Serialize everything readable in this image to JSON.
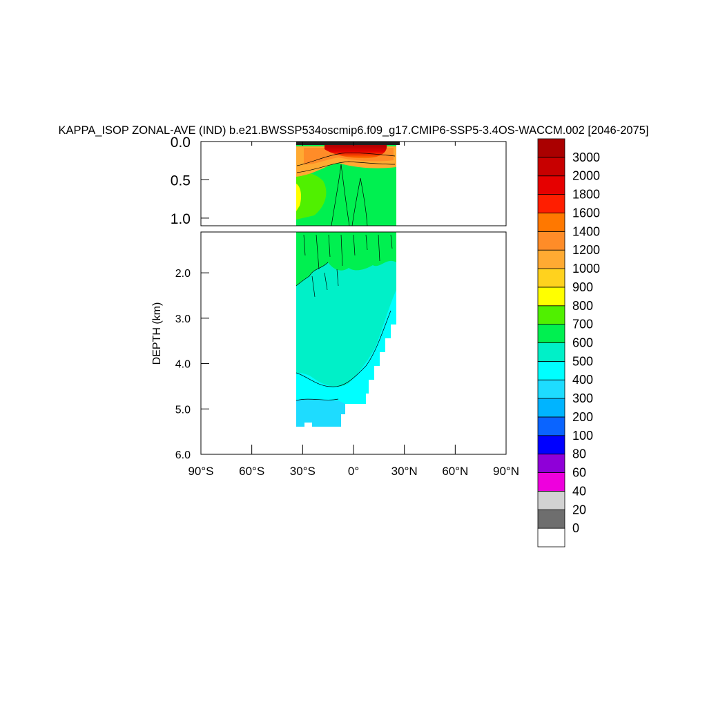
{
  "chart_data": {
    "type": "heatmap",
    "title": "KAPPA_ISOP ZONAL-AVE (IND) b.e21.BWSSP534oscmip6.f09_g17.CMIP6-SSP5-3.4OS-WACCM.002 [2046-2075]",
    "ylabel": "DEPTH (km)",
    "xlabel": "",
    "xlim": [
      -90,
      90
    ],
    "ylim_upper_panel": [
      0.0,
      1.1
    ],
    "ylim_lower_panel": [
      1.1,
      6.0
    ],
    "x_ticks": [
      {
        "value": -90,
        "label": "90°S"
      },
      {
        "value": -60,
        "label": "60°S"
      },
      {
        "value": -30,
        "label": "30°S"
      },
      {
        "value": 0,
        "label": "0°"
      },
      {
        "value": 30,
        "label": "30°N"
      },
      {
        "value": 60,
        "label": "60°N"
      },
      {
        "value": 90,
        "label": "90°N"
      }
    ],
    "y_ticks_upper": [
      {
        "value": 0.0,
        "label": "0.0"
      },
      {
        "value": 0.5,
        "label": "0.5"
      },
      {
        "value": 1.0,
        "label": "1.0"
      }
    ],
    "y_ticks_lower": [
      {
        "value": 2.0,
        "label": "2.0"
      },
      {
        "value": 3.0,
        "label": "3.0"
      },
      {
        "value": 4.0,
        "label": "4.0"
      },
      {
        "value": 5.0,
        "label": "5.0"
      },
      {
        "value": 6.0,
        "label": "6.0"
      }
    ],
    "colorbar": {
      "levels": [
        "0",
        "20",
        "40",
        "60",
        "80",
        "100",
        "200",
        "300",
        "400",
        "500",
        "600",
        "700",
        "800",
        "900",
        "1000",
        "1200",
        "1400",
        "1600",
        "1800",
        "2000",
        "3000"
      ],
      "colors": [
        "#ffffff",
        "#6e6e6e",
        "#d2d2d2",
        "#ee00dd",
        "#8f00d8",
        "#0000ff",
        "#0a64ff",
        "#00b4ff",
        "#1edcff",
        "#00ffff",
        "#00f0c8",
        "#00f050",
        "#50f000",
        "#ffff00",
        "#ffd21e",
        "#ffaa32",
        "#ff8c28",
        "#ff7800",
        "#ff1e00",
        "#e60000",
        "#c80000",
        "#aa0000"
      ]
    },
    "data_extent": {
      "lat_min": -34,
      "lat_max": 25,
      "depth_max_km": 5.4
    },
    "fields": [
      {
        "region": "surface layer 0-0.03 km",
        "value_range": [
          0,
          400
        ]
      },
      {
        "region": "subsurface maximum 0.05-0.15 km, 10°S-20°N",
        "value_range": [
          2000,
          3000
        ]
      },
      {
        "region": "upper thermocline 0.1-0.3 km",
        "value_range": [
          1000,
          1800
        ]
      },
      {
        "region": "southern flank 0.4-1.0 km near 33°S",
        "value_range": [
          800,
          1000
        ]
      },
      {
        "region": "0.3-1.5 km",
        "value_range": [
          600,
          700
        ]
      },
      {
        "region": "deep interior 2-4 km",
        "value_range": [
          500,
          600
        ]
      },
      {
        "region": "near bottom 4.5-5.4 km",
        "value_range": [
          300,
          500
        ]
      }
    ]
  }
}
